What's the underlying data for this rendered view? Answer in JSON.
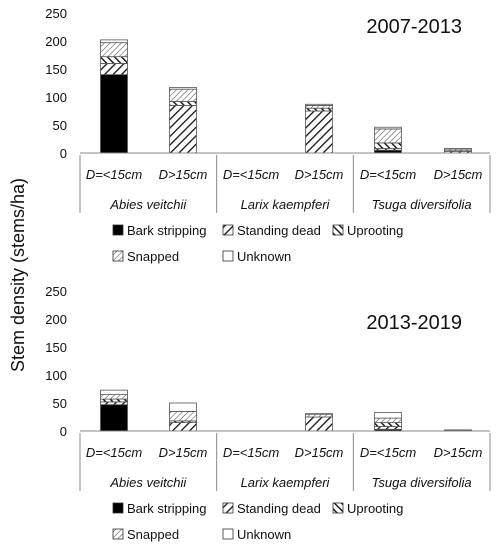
{
  "ylabel": "Stem density (stems/ha)",
  "chart_data": [
    {
      "type": "bar",
      "stacked": true,
      "title": "2007-2013",
      "ylim": [
        0,
        250
      ],
      "yticks": [
        0,
        50,
        100,
        150,
        200,
        250
      ],
      "categories": [
        "D=<15cm",
        "D>15cm",
        "D=<15cm",
        "D>15cm",
        "D=<15cm",
        "D>15cm"
      ],
      "groups": [
        "Abies veitchii",
        "Larix kaempferi",
        "Tsuga diversifolia"
      ],
      "series": [
        {
          "name": "Bark stripping",
          "values": [
            140,
            0,
            0,
            0,
            5,
            0
          ]
        },
        {
          "name": "Standing dead",
          "values": [
            20,
            85,
            0,
            75,
            3,
            3
          ]
        },
        {
          "name": "Uprooting",
          "values": [
            12,
            7,
            0,
            5,
            10,
            1
          ]
        },
        {
          "name": "Snapped",
          "values": [
            25,
            22,
            0,
            5,
            25,
            3
          ]
        },
        {
          "name": "Unknown",
          "values": [
            5,
            3,
            0,
            2,
            3,
            1
          ]
        }
      ]
    },
    {
      "type": "bar",
      "stacked": true,
      "title": "2013-2019",
      "ylim": [
        0,
        250
      ],
      "yticks": [
        0,
        50,
        100,
        150,
        200,
        250
      ],
      "categories": [
        "D=<15cm",
        "D>15cm",
        "D=<15cm",
        "D>15cm",
        "D=<15cm",
        "D>15cm"
      ],
      "groups": [
        "Abies veitchii",
        "Larix kaempferi",
        "Tsuga diversifolia"
      ],
      "series": [
        {
          "name": "Bark stripping",
          "values": [
            47,
            0,
            0,
            0,
            3,
            0
          ]
        },
        {
          "name": "Standing dead",
          "values": [
            5,
            15,
            0,
            25,
            5,
            1
          ]
        },
        {
          "name": "Uprooting",
          "values": [
            5,
            3,
            0,
            0,
            7,
            0
          ]
        },
        {
          "name": "Snapped",
          "values": [
            8,
            17,
            0,
            5,
            8,
            1
          ]
        },
        {
          "name": "Unknown",
          "values": [
            8,
            15,
            0,
            1,
            10,
            0
          ]
        }
      ]
    }
  ]
}
